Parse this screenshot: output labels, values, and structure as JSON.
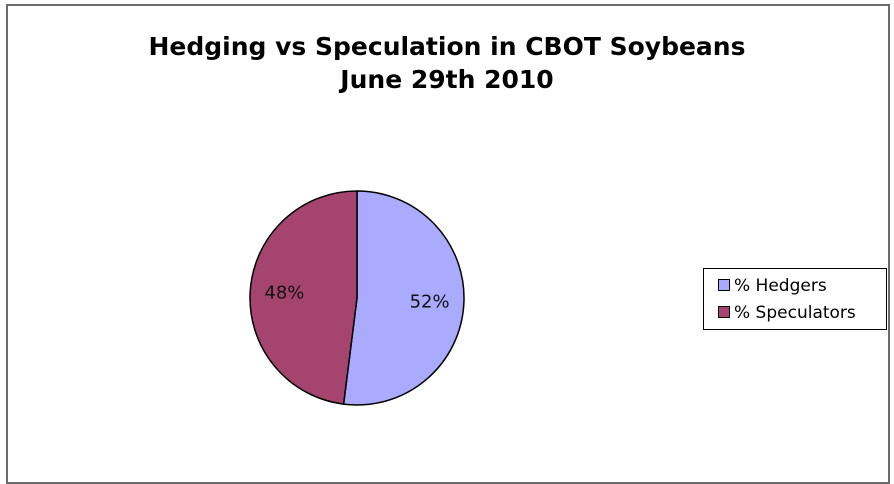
{
  "chart_data": {
    "type": "pie",
    "title": "Hedging vs Speculation in CBOT Soybeans",
    "subtitle": "June 29th 2010",
    "legend_position": "right",
    "slices": [
      {
        "label": "% Hedgers",
        "value": 52,
        "display": "52%",
        "color": "#aaaaff"
      },
      {
        "label": "% Speculators",
        "value": 48,
        "display": "48%",
        "color": "#a64470"
      }
    ]
  }
}
